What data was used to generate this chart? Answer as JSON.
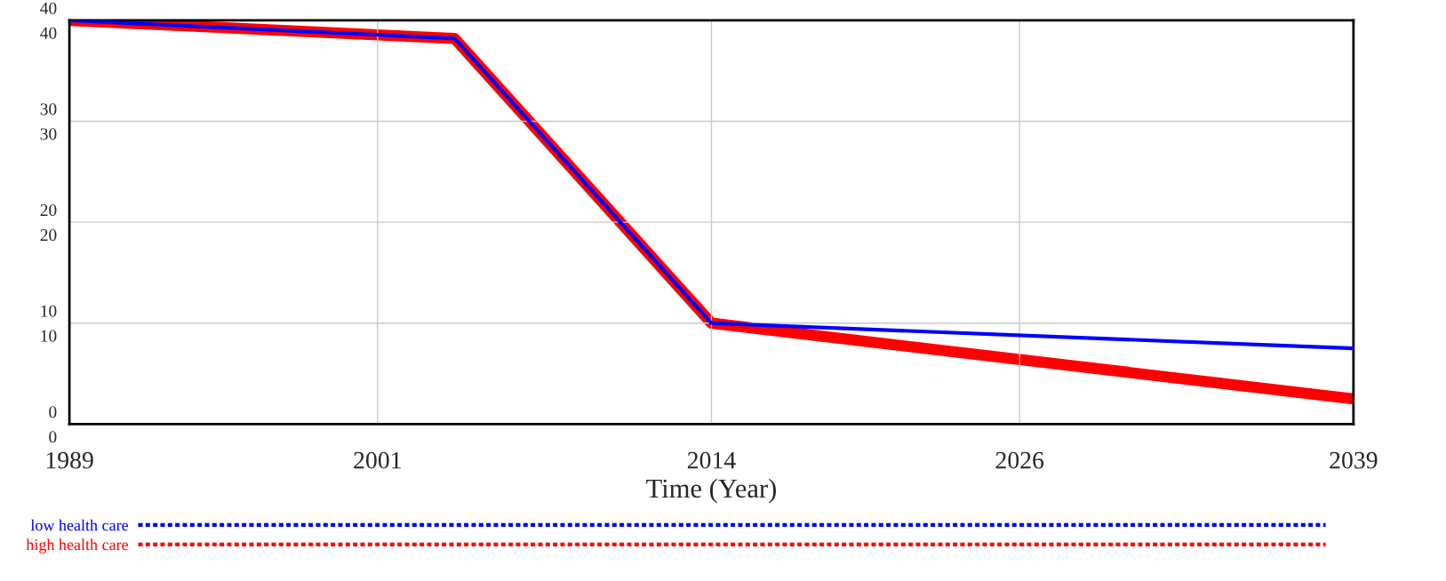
{
  "chart_data": {
    "type": "line",
    "xlabel": "Time (Year)",
    "x": [
      1989,
      2004,
      2014,
      2039
    ],
    "xlim": [
      1989,
      2039
    ],
    "xticks": [
      1989,
      2001,
      2014,
      2026,
      2039
    ],
    "ylim": [
      0,
      40
    ],
    "yticks": [
      0,
      10,
      20,
      30,
      40
    ],
    "y2lim": [
      0,
      40
    ],
    "y2ticks": [
      0,
      10,
      20,
      30,
      40
    ],
    "grid": true,
    "legend": "bottom",
    "line_style": "solid",
    "series": [
      {
        "name": "low health care",
        "color": "#0000ff",
        "values": [
          40,
          38.2,
          10,
          7.5
        ],
        "axis": "y"
      },
      {
        "name": "high health care",
        "color": "#ff0000",
        "values": [
          40,
          38.2,
          10,
          2.5
        ],
        "axis": "y2"
      }
    ]
  }
}
